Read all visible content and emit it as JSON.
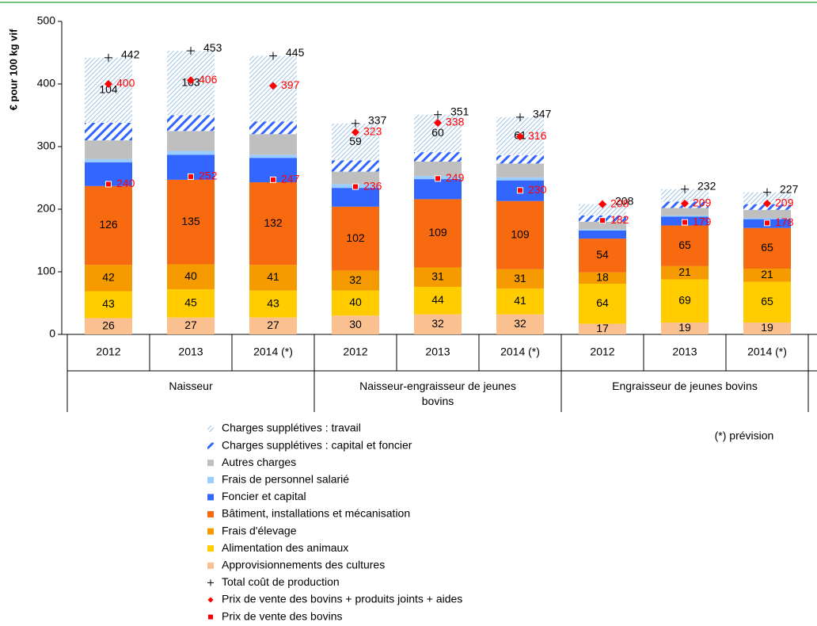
{
  "chart_data": {
    "type": "stacked-bar",
    "y_label": "€ pour 100 kg vif",
    "annotation": "(*) prévision",
    "ylim": [
      0,
      500
    ],
    "yticks": [
      0,
      100,
      200,
      300,
      400,
      500
    ],
    "categories": [
      "2012",
      "2013",
      "2014 (*)",
      "2012",
      "2013",
      "2014 (*)",
      "2012",
      "2013",
      "2014 (*)"
    ],
    "groups": [
      {
        "label": "Naisseur",
        "span": 3
      },
      {
        "label": "Naisseur-engraisseur de jeunes bovins",
        "span": 3
      },
      {
        "label": "Engraisseur de jeunes bovins",
        "span": 3
      }
    ],
    "series": [
      {
        "name": "Charges supplétives : travail",
        "kind": "stack",
        "color": "#9dc3e6",
        "hatch": "thin",
        "values": [
          104,
          103,
          105,
          59,
          60,
          61,
          18,
          20,
          19
        ],
        "value_labels": [
          "104",
          "103",
          null,
          "59",
          "60",
          "61",
          null,
          null,
          null
        ]
      },
      {
        "name": "Charges supplétives : capital et foncier",
        "kind": "stack",
        "color": "#3366ff",
        "hatch": "thick",
        "values": [
          28,
          25,
          20,
          18,
          15,
          13,
          10,
          10,
          9
        ]
      },
      {
        "name": "Autres charges",
        "kind": "stack",
        "color": "#bfbfbf",
        "values": [
          30,
          32,
          33,
          20,
          23,
          22,
          12,
          12,
          13
        ]
      },
      {
        "name": "Frais de personnel salarié",
        "kind": "stack",
        "color": "#99ccff",
        "values": [
          5,
          6,
          5,
          6,
          5,
          5,
          2,
          2,
          2
        ]
      },
      {
        "name": "Foncier et capital",
        "kind": "stack",
        "color": "#3366ff",
        "values": [
          38,
          40,
          39,
          30,
          32,
          33,
          13,
          14,
          14
        ]
      },
      {
        "name": "Bâtiment, installations et mécanisation",
        "kind": "stack",
        "color": "#f86a10",
        "show_labels": true,
        "values": [
          126,
          135,
          132,
          102,
          109,
          109,
          54,
          65,
          65
        ]
      },
      {
        "name": "Frais d'élevage",
        "kind": "stack",
        "color": "#f59b00",
        "show_labels": true,
        "values": [
          42,
          40,
          41,
          32,
          31,
          31,
          18,
          21,
          21
        ]
      },
      {
        "name": "Alimentation des animaux",
        "kind": "stack",
        "color": "#ffcc00",
        "show_labels": true,
        "values": [
          43,
          45,
          43,
          40,
          44,
          41,
          64,
          69,
          65
        ]
      },
      {
        "name": "Approvisionnements des cultures",
        "kind": "stack",
        "color": "#fac090",
        "show_labels": true,
        "values": [
          26,
          27,
          27,
          30,
          32,
          32,
          17,
          19,
          19
        ]
      },
      {
        "name": "Total coût de production",
        "kind": "marker",
        "marker": "plus",
        "color": "#000000",
        "show_labels": true,
        "values": [
          442,
          453,
          445,
          337,
          351,
          347,
          208,
          232,
          227
        ]
      },
      {
        "name": "Prix de vente des bovins + produits joints + aides",
        "kind": "marker",
        "marker": "diamond",
        "color": "#ff0000",
        "show_labels": true,
        "values": [
          400,
          406,
          397,
          323,
          338,
          316,
          208,
          209,
          209
        ]
      },
      {
        "name": "Prix de vente des bovins",
        "kind": "marker",
        "marker": "square",
        "color": "#ff0000",
        "show_labels": true,
        "values": [
          240,
          252,
          247,
          236,
          249,
          230,
          182,
          179,
          178
        ]
      }
    ]
  }
}
